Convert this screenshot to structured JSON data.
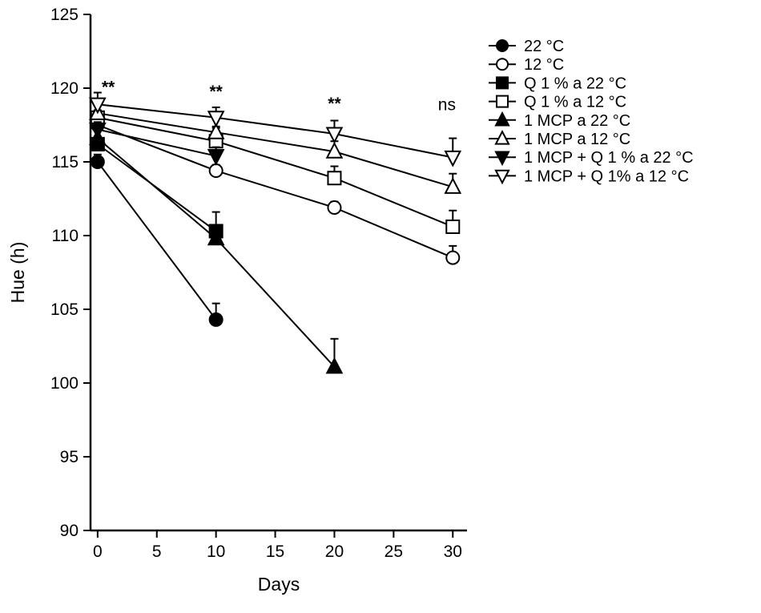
{
  "chart_data": {
    "type": "line",
    "title": "",
    "xlabel": "Days",
    "ylabel": "Hue (h)",
    "xlim": [
      -0.6,
      31.2
    ],
    "ylim": [
      90,
      125
    ],
    "xticks": [
      0,
      5,
      10,
      15,
      20,
      25,
      30
    ],
    "yticks": [
      90,
      95,
      100,
      105,
      110,
      115,
      120,
      125
    ],
    "grid": false,
    "color": "#000000",
    "legend_position": "upper-right-outside",
    "series": [
      {
        "name": "22 °C",
        "marker": "circle",
        "fill": "filled",
        "x": [
          0,
          10
        ],
        "y": [
          115.0,
          104.3
        ],
        "err": [
          0.5,
          1.1
        ]
      },
      {
        "name": "12 °C",
        "marker": "circle",
        "fill": "open",
        "x": [
          0,
          10,
          20,
          30
        ],
        "y": [
          117.5,
          114.4,
          111.9,
          108.5
        ],
        "err": [
          0.5,
          0.4,
          0.4,
          0.8
        ]
      },
      {
        "name": "Q 1 % a 22 °C",
        "marker": "square",
        "fill": "filled",
        "x": [
          0,
          10
        ],
        "y": [
          116.2,
          110.3
        ],
        "err": [
          0.5,
          1.3
        ]
      },
      {
        "name": "Q 1 % a 12 °C",
        "marker": "square",
        "fill": "open",
        "x": [
          0,
          10,
          20,
          30
        ],
        "y": [
          118.0,
          116.4,
          113.9,
          110.6
        ],
        "err": [
          0.5,
          0.9,
          0.8,
          1.1
        ]
      },
      {
        "name": "1 MCP a 22 °C",
        "marker": "triangle-up",
        "fill": "filled",
        "x": [
          0,
          10,
          20
        ],
        "y": [
          116.6,
          109.8,
          101.1
        ],
        "err": [
          0.5,
          0.5,
          1.9
        ]
      },
      {
        "name": "1 MCP a 12 °C",
        "marker": "triangle-up",
        "fill": "open",
        "x": [
          0,
          10,
          20,
          30
        ],
        "y": [
          118.3,
          117.0,
          115.7,
          113.3
        ],
        "err": [
          0.5,
          0.4,
          0.7,
          0.9
        ]
      },
      {
        "name": "1 MCP + Q 1 % a 22 °C",
        "marker": "triangle-down",
        "fill": "filled",
        "x": [
          0,
          10
        ],
        "y": [
          117.2,
          115.4
        ],
        "err": [
          0.5,
          0.6
        ]
      },
      {
        "name": "1 MCP + Q 1% a 12 °C",
        "marker": "triangle-down",
        "fill": "open",
        "x": [
          0,
          10,
          20,
          30
        ],
        "y": [
          118.9,
          118.0,
          116.9,
          115.3
        ],
        "err": [
          0.8,
          0.7,
          0.9,
          1.3
        ]
      }
    ],
    "annotations": [
      {
        "text": "**",
        "x": 0.9,
        "y": 119.7,
        "bold": true
      },
      {
        "text": "**",
        "x": 10,
        "y": 119.4,
        "bold": true
      },
      {
        "text": "**",
        "x": 20,
        "y": 118.6,
        "bold": true
      },
      {
        "text": "ns",
        "x": 29.5,
        "y": 118.5,
        "bold": false
      }
    ]
  }
}
